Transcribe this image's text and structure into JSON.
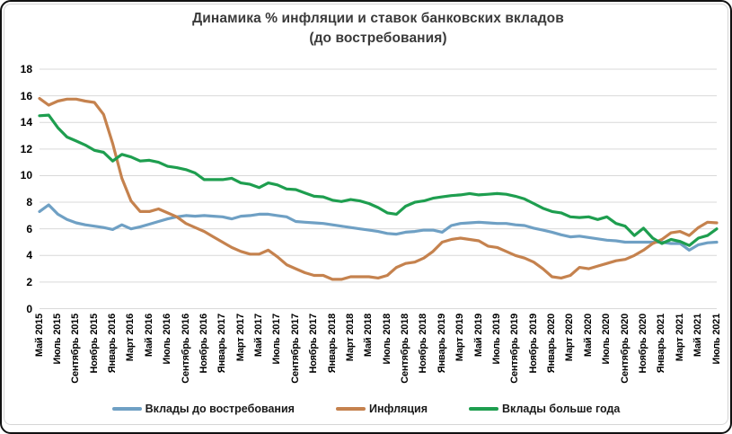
{
  "title": {
    "line1": "Динамика % инфляции и ставок банковских вкладов",
    "line2": "(до востребования)"
  },
  "y_axis": {
    "tick_labels": [
      "18",
      "16",
      "14",
      "12",
      "10",
      "8",
      "6",
      "4",
      "2",
      "0"
    ]
  },
  "x_axis": {
    "tick_labels": [
      "Май 2015",
      "Июль 2015",
      "Сентябрь 2015",
      "Ноябрь 2015",
      "Январь 2016",
      "Март 2016",
      "Май 2016",
      "Июль 2016",
      "Сентябрь 2016",
      "Ноябрь 2016",
      "Январь 2017",
      "Март 2017",
      "Май 2017",
      "Июль 2017",
      "Сентябрь 2017",
      "Ноябрь 2017",
      "Январь 2018",
      "Март 2018",
      "Май 2018",
      "Июль 2018",
      "Сентябрь 2018",
      "Ноябрь 2018",
      "Январь 2019",
      "Март 2019",
      "Май 2019",
      "Июль 2019",
      "Сентябрь 2019",
      "Ноябрь 2019",
      "Январь 2020",
      "Март 2020",
      "Май 2020",
      "Июль 2020",
      "Сентябрь 2020",
      "Ноябрь 2020",
      "Январь 2021",
      "Март 2021",
      "Май 2021",
      "Июль 2021"
    ]
  },
  "legend": [
    {
      "label": "Вклады до востребования",
      "color": "#6FA0C4"
    },
    {
      "label": "Инфляция",
      "color": "#C5824E"
    },
    {
      "label": "Вклады больше года",
      "color": "#1E9E4F"
    }
  ],
  "colors": {
    "gridline": "#D9D9D9",
    "title_text": "#3a3a3a",
    "deposits_on_demand": "#6FA0C4",
    "inflation": "#C5824E",
    "deposits_over_year": "#1E9E4F"
  },
  "chart_data": {
    "type": "line",
    "x_start": "Май 2015",
    "x_end": "Июль 2021",
    "x_frequency": "monthly",
    "x_tick_every": 2,
    "ylim": [
      0,
      18
    ],
    "y_step": 2,
    "grid": "horizontal",
    "legend_position": "bottom",
    "series": [
      {
        "name": "Вклады до востребования",
        "color": "#6FA0C4",
        "values": [
          7.3,
          7.8,
          7.1,
          6.7,
          6.45,
          6.3,
          6.2,
          6.1,
          5.95,
          6.3,
          6.0,
          6.15,
          6.35,
          6.55,
          6.75,
          6.9,
          7.0,
          6.95,
          7.0,
          6.95,
          6.9,
          6.75,
          6.95,
          7.0,
          7.1,
          7.1,
          7.0,
          6.9,
          6.55,
          6.5,
          6.45,
          6.4,
          6.3,
          6.2,
          6.1,
          6.0,
          5.9,
          5.8,
          5.65,
          5.6,
          5.75,
          5.8,
          5.9,
          5.9,
          5.75,
          6.25,
          6.4,
          6.45,
          6.5,
          6.45,
          6.4,
          6.4,
          6.3,
          6.25,
          6.05,
          5.9,
          5.75,
          5.55,
          5.4,
          5.45,
          5.35,
          5.25,
          5.15,
          5.1,
          5.0,
          5.0,
          5.0,
          5.0,
          5.0,
          4.9,
          4.9,
          4.4,
          4.8,
          4.95,
          5.0
        ]
      },
      {
        "name": "Инфляция",
        "color": "#C5824E",
        "values": [
          15.8,
          15.3,
          15.6,
          15.75,
          15.75,
          15.6,
          15.5,
          14.6,
          12.4,
          9.8,
          8.1,
          7.3,
          7.3,
          7.5,
          7.2,
          6.9,
          6.4,
          6.1,
          5.8,
          5.4,
          5.0,
          4.6,
          4.3,
          4.1,
          4.1,
          4.4,
          3.9,
          3.3,
          3.0,
          2.7,
          2.5,
          2.5,
          2.2,
          2.2,
          2.4,
          2.4,
          2.4,
          2.3,
          2.5,
          3.1,
          3.4,
          3.5,
          3.8,
          4.3,
          5.0,
          5.2,
          5.3,
          5.2,
          5.1,
          4.7,
          4.6,
          4.3,
          4.0,
          3.8,
          3.5,
          3.0,
          2.4,
          2.3,
          2.5,
          3.1,
          3.0,
          3.2,
          3.4,
          3.6,
          3.7,
          4.0,
          4.4,
          4.9,
          5.2,
          5.7,
          5.8,
          5.5,
          6.1,
          6.5,
          6.45
        ]
      },
      {
        "name": "Вклады больше года",
        "color": "#1E9E4F",
        "values": [
          14.5,
          14.55,
          13.6,
          12.9,
          12.6,
          12.3,
          11.9,
          11.75,
          11.1,
          11.6,
          11.4,
          11.1,
          11.15,
          11.0,
          10.7,
          10.6,
          10.45,
          10.2,
          9.7,
          9.7,
          9.7,
          9.8,
          9.45,
          9.35,
          9.1,
          9.45,
          9.3,
          9.0,
          8.95,
          8.7,
          8.45,
          8.4,
          8.15,
          8.05,
          8.2,
          8.1,
          7.9,
          7.6,
          7.2,
          7.1,
          7.7,
          8.0,
          8.1,
          8.3,
          8.4,
          8.5,
          8.55,
          8.65,
          8.55,
          8.6,
          8.65,
          8.6,
          8.45,
          8.25,
          7.9,
          7.55,
          7.3,
          7.2,
          6.9,
          6.85,
          6.9,
          6.7,
          6.9,
          6.4,
          6.2,
          5.5,
          6.05,
          5.3,
          4.9,
          5.2,
          5.05,
          4.75,
          5.3,
          5.5,
          6.0
        ]
      }
    ]
  }
}
